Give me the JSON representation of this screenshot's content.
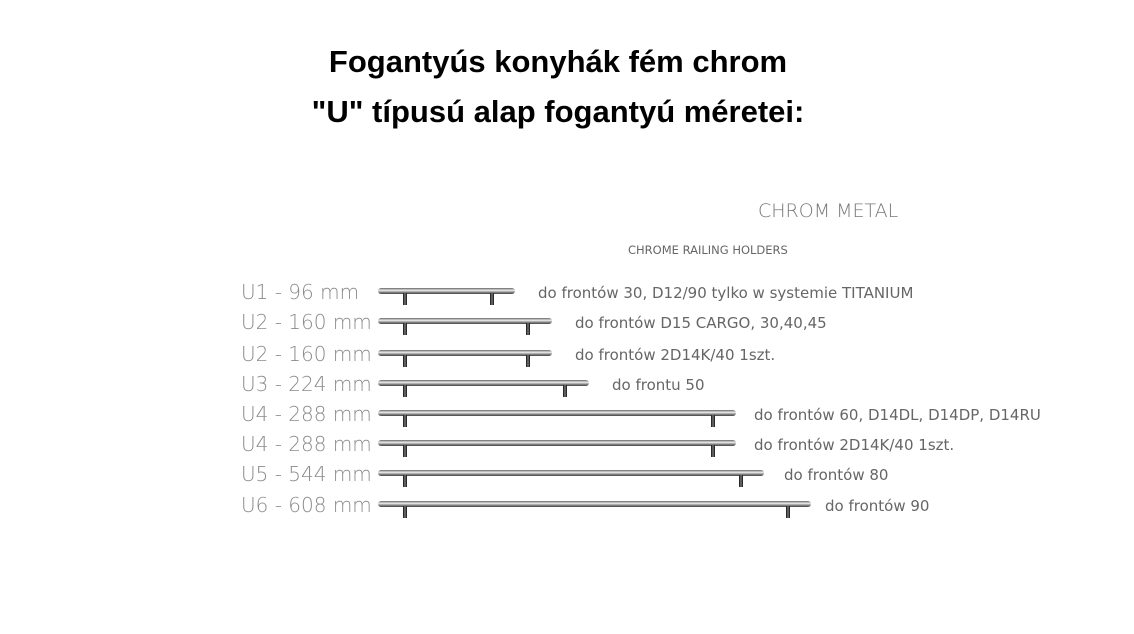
{
  "title_line1": "Fogantyús konyhák fém chrom",
  "title_line2": "\"U\" típusú alap fogantyú méretei:",
  "brand": "CHROM METAL",
  "subtitle": "CHROME RAILING HOLDERS",
  "rows": [
    {
      "label": "U1 - 96 mm",
      "desc": "do frontów 30, D12/90 tylko w systemie TITANIUM"
    },
    {
      "label": "U2 - 160 mm",
      "desc": "do frontów D15 CARGO, 30,40,45"
    },
    {
      "label": "U2 - 160 mm",
      "desc": "do frontów 2D14K/40 1szt."
    },
    {
      "label": "U3 - 224 mm",
      "desc": "do frontu 50"
    },
    {
      "label": "U4 - 288 mm",
      "desc": "do frontów 60, D14DL, D14DP, D14RU"
    },
    {
      "label": "U4 - 288 mm",
      "desc": "do frontów 2D14K/40 1szt."
    },
    {
      "label": "U5 - 544 mm",
      "desc": "do frontów 80"
    },
    {
      "label": "U6 - 608 mm",
      "desc": "do frontów 90"
    }
  ]
}
